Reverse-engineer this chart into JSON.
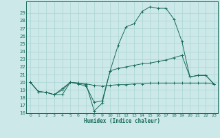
{
  "xlabel": "Humidex (Indice chaleur)",
  "ylabel": "",
  "xlim": [
    -0.5,
    23.5
  ],
  "ylim": [
    16,
    30
  ],
  "yticks": [
    16,
    17,
    18,
    19,
    20,
    21,
    22,
    23,
    24,
    25,
    26,
    27,
    28,
    29
  ],
  "xticks": [
    0,
    1,
    2,
    3,
    4,
    5,
    6,
    7,
    8,
    9,
    10,
    11,
    12,
    13,
    14,
    15,
    16,
    17,
    18,
    19,
    20,
    21,
    22,
    23
  ],
  "bg_color": "#cce8e8",
  "line_color": "#1a6b5a",
  "grid_color": "#aad4d4",
  "curve1_x": [
    0,
    1,
    2,
    3,
    4,
    5,
    6,
    7,
    8,
    9,
    10,
    11,
    12,
    13,
    14,
    15,
    16,
    17,
    18,
    19,
    20,
    21,
    22,
    23
  ],
  "curve1_y": [
    20.0,
    18.8,
    18.7,
    18.4,
    18.4,
    20.0,
    19.8,
    19.5,
    17.4,
    17.6,
    21.5,
    24.8,
    27.2,
    27.6,
    29.2,
    29.8,
    29.6,
    29.6,
    28.2,
    25.3,
    20.7,
    20.9,
    20.9,
    19.8
  ],
  "curve2_x": [
    0,
    1,
    2,
    3,
    4,
    5,
    6,
    7,
    8,
    9,
    10,
    11,
    12,
    13,
    14,
    15,
    16,
    17,
    18,
    19,
    20,
    21,
    22,
    23
  ],
  "curve2_y": [
    20.0,
    18.8,
    18.7,
    18.4,
    19.0,
    20.0,
    19.9,
    19.7,
    16.3,
    17.3,
    21.5,
    21.8,
    22.0,
    22.2,
    22.4,
    22.5,
    22.7,
    22.9,
    23.2,
    23.5,
    20.7,
    20.9,
    20.9,
    19.8
  ],
  "curve3_x": [
    0,
    1,
    2,
    3,
    4,
    5,
    6,
    7,
    8,
    9,
    10,
    11,
    12,
    13,
    14,
    15,
    16,
    17,
    18,
    19,
    20,
    21,
    22,
    23
  ],
  "curve3_y": [
    20.0,
    18.8,
    18.7,
    18.4,
    19.2,
    20.0,
    19.9,
    19.8,
    19.6,
    19.5,
    19.6,
    19.7,
    19.7,
    19.8,
    19.8,
    19.9,
    19.9,
    19.9,
    19.9,
    19.9,
    19.9,
    19.9,
    19.9,
    19.8
  ]
}
